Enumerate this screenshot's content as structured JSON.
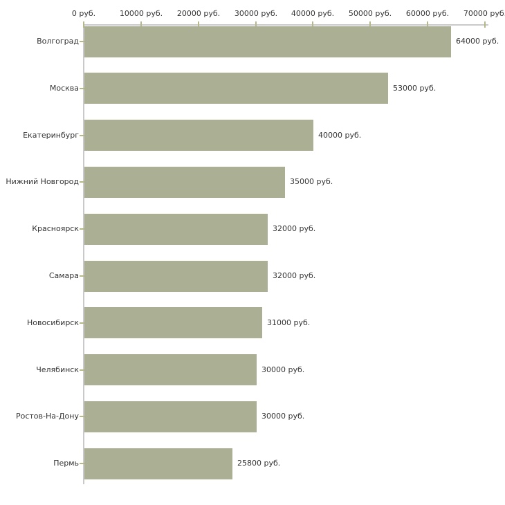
{
  "chart_data": {
    "type": "bar",
    "orientation": "horizontal",
    "title": "",
    "xlabel": "",
    "ylabel": "",
    "categories": [
      "Волгоград",
      "Москва",
      "Екатеринбург",
      "Нижний Новгород",
      "Красноярск",
      "Самара",
      "Новосибирск",
      "Челябинск",
      "Ростов-На-Дону",
      "Пермь"
    ],
    "values": [
      64000,
      53000,
      40000,
      35000,
      32000,
      32000,
      31000,
      30000,
      30000,
      25800
    ],
    "value_labels": [
      "64000 руб.",
      "53000 руб.",
      "40000 руб.",
      "35000 руб.",
      "32000 руб.",
      "32000 руб.",
      "31000 руб.",
      "30000 руб.",
      "30000 руб.",
      "25800 руб."
    ],
    "x_ticks": [
      0,
      10000,
      20000,
      30000,
      40000,
      50000,
      60000,
      70000
    ],
    "x_tick_labels": [
      "0 руб.",
      "10000 руб.",
      "20000 руб.",
      "30000 руб.",
      "40000 руб.",
      "50000 руб.",
      "60000 руб.",
      "70000 руб."
    ],
    "xlim": [
      0,
      70000
    ],
    "x_axis_position": "top",
    "grid": false,
    "legend": false,
    "colors": {
      "bar": "#abb095",
      "axis_line": "#c9c9c9",
      "tick": "#b6b987",
      "text": "#333333",
      "background": "#ffffff"
    }
  }
}
